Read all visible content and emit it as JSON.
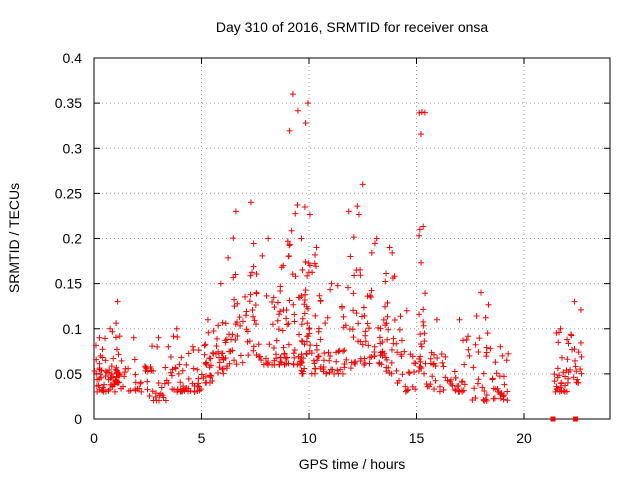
{
  "chart_data": {
    "type": "scatter",
    "title": "Day 310 of 2016, SRMTID for receiver onsa",
    "xlabel": "GPS time / hours",
    "ylabel": "SRMTID / TECUs",
    "xlim": [
      0,
      24
    ],
    "ylim": [
      0,
      0.4
    ],
    "xticks": [
      0,
      5,
      10,
      15,
      20
    ],
    "xtick_labels": [
      "0",
      "5",
      "10",
      "15",
      "20"
    ],
    "yticks": [
      0,
      0.05,
      0.1,
      0.15,
      0.2,
      0.25,
      0.3,
      0.35,
      0.4
    ],
    "ytick_labels": [
      "0",
      "0.05",
      "0.1",
      "0.15",
      "0.2",
      "0.25",
      "0.3",
      "0.35",
      "0.4"
    ],
    "grid": true,
    "marker": "+",
    "color": "#ff0000",
    "points_per_segment": 25,
    "series": [
      {
        "name": "SRMTID",
        "note": "dense scatter; envelope segments [x_start, x_end, y_low, y_high] in hours and TECUs",
        "segments": [
          [
            0.0,
            0.5,
            0.03,
            0.09
          ],
          [
            0.5,
            1.0,
            0.03,
            0.1
          ],
          [
            1.0,
            1.2,
            0.04,
            0.13
          ],
          [
            1.2,
            2.5,
            0.03,
            0.09
          ],
          [
            2.5,
            3.5,
            0.02,
            0.09
          ],
          [
            3.5,
            4.2,
            0.03,
            0.1
          ],
          [
            4.2,
            5.0,
            0.03,
            0.08
          ],
          [
            5.0,
            5.6,
            0.04,
            0.11
          ],
          [
            5.6,
            6.2,
            0.05,
            0.15
          ],
          [
            6.2,
            7.0,
            0.06,
            0.23
          ],
          [
            7.0,
            7.6,
            0.07,
            0.24
          ],
          [
            7.6,
            8.6,
            0.06,
            0.2
          ],
          [
            8.6,
            9.0,
            0.06,
            0.17
          ],
          [
            9.0,
            9.5,
            0.06,
            0.36
          ],
          [
            9.5,
            9.8,
            0.05,
            0.2
          ],
          [
            9.8,
            10.1,
            0.07,
            0.35
          ],
          [
            10.1,
            10.6,
            0.05,
            0.19
          ],
          [
            10.6,
            11.5,
            0.05,
            0.15
          ],
          [
            11.5,
            12.2,
            0.05,
            0.23
          ],
          [
            12.2,
            12.8,
            0.06,
            0.26
          ],
          [
            12.8,
            13.5,
            0.06,
            0.2
          ],
          [
            13.5,
            14.0,
            0.05,
            0.19
          ],
          [
            14.0,
            15.1,
            0.03,
            0.12
          ],
          [
            15.1,
            15.4,
            0.05,
            0.34
          ],
          [
            15.4,
            16.5,
            0.03,
            0.11
          ],
          [
            16.5,
            17.5,
            0.03,
            0.11
          ],
          [
            17.5,
            18.5,
            0.02,
            0.14
          ],
          [
            18.5,
            19.3,
            0.02,
            0.08
          ],
          [
            21.4,
            22.0,
            0.03,
            0.1
          ],
          [
            22.0,
            22.7,
            0.04,
            0.13
          ]
        ],
        "outliers": [
          [
            21.35,
            0.0
          ],
          [
            22.4,
            0.0
          ]
        ]
      }
    ]
  }
}
